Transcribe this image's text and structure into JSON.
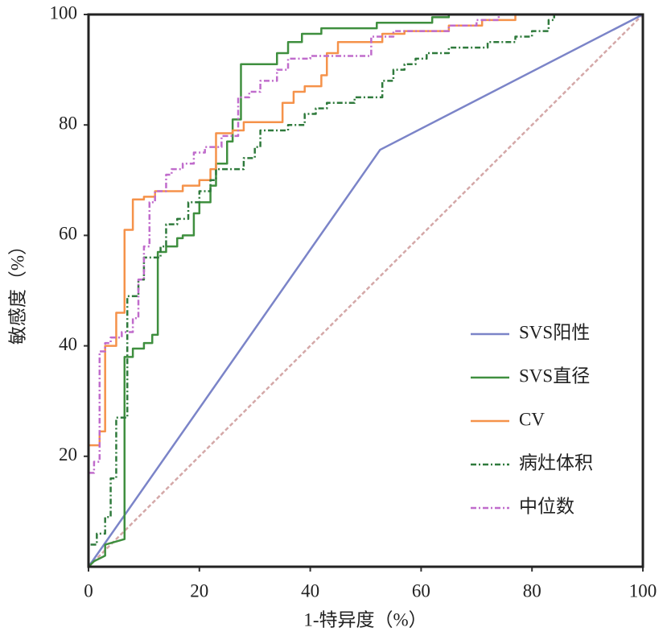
{
  "chart_data": {
    "type": "line",
    "x_label": "1-特异度（%）",
    "y_label": "敏感度（%）",
    "xlim": [
      0,
      100
    ],
    "ylim": [
      0,
      100
    ],
    "xticks": [
      0,
      20,
      40,
      60,
      80,
      100
    ],
    "yticks": [
      20,
      40,
      60,
      80,
      100
    ],
    "legend": "lower right",
    "reference_line": {
      "x": [
        0,
        100
      ],
      "values": [
        0,
        100
      ],
      "color": "#d4a8a8",
      "dash": "dashed"
    },
    "series": [
      {
        "name": "SVS阳性",
        "color": "#7b84c8",
        "dash": "solid",
        "x": [
          0,
          52.6,
          100
        ],
        "values": [
          0,
          75.5,
          100
        ]
      },
      {
        "name": "SVS直径",
        "color": "#3f8f3f",
        "dash": "solid",
        "x": [
          0,
          1,
          3,
          3,
          6.5,
          6.5,
          8,
          8,
          10,
          10,
          11.5,
          11.5,
          12.5,
          12.5,
          14,
          14,
          16,
          16,
          17,
          17,
          19,
          19,
          20,
          20,
          22,
          22,
          23,
          23,
          25,
          25,
          26,
          26,
          27.5,
          27.5,
          34,
          34,
          36,
          36,
          38.5,
          38.5,
          42,
          42,
          52,
          52,
          62,
          62,
          65,
          65,
          100
        ],
        "values": [
          0,
          1,
          2,
          4,
          5,
          38,
          38,
          39.5,
          39.5,
          40.5,
          40.5,
          42,
          42,
          57,
          57,
          58,
          58,
          59.5,
          59.5,
          60,
          60,
          64,
          64,
          66,
          66,
          69,
          69,
          73,
          73,
          77,
          77,
          81,
          81,
          91,
          91,
          93,
          93,
          95,
          95,
          96.5,
          96.5,
          97.5,
          97.5,
          98.5,
          98.5,
          99.5,
          99.5,
          100,
          100
        ]
      },
      {
        "name": "CV",
        "color": "#f5924a",
        "dash": "solid",
        "x": [
          0,
          2,
          2,
          3,
          3,
          5,
          5,
          6.5,
          6.5,
          8,
          8,
          10,
          10,
          12,
          12,
          17,
          17,
          20,
          20,
          22,
          22,
          23,
          23,
          26,
          26,
          28,
          28,
          35,
          35,
          37,
          37,
          39,
          39,
          42,
          42,
          43,
          43,
          45,
          45,
          53,
          53,
          57,
          57,
          65,
          65,
          71,
          71,
          77,
          77,
          100
        ],
        "values": [
          22,
          22,
          24.5,
          24.5,
          40,
          40,
          46,
          46,
          61,
          61,
          66.5,
          66.5,
          67,
          67,
          68,
          68,
          69,
          69,
          70,
          70,
          72,
          72,
          78.5,
          78.5,
          79,
          79,
          80.5,
          80.5,
          84,
          84,
          86,
          86,
          87,
          87,
          89,
          89,
          93,
          93,
          95,
          95,
          96.5,
          96.5,
          97,
          97,
          98,
          98,
          99,
          99,
          100,
          100
        ]
      },
      {
        "name": "病灶体积",
        "color": "#2f7a3c",
        "dash": "dash-dot",
        "x": [
          0,
          0,
          1.5,
          1.5,
          3,
          3,
          4,
          4,
          5,
          5,
          7,
          7,
          9,
          9,
          10,
          10,
          13,
          13,
          14,
          14,
          16,
          16,
          18,
          18,
          20,
          20,
          22,
          22,
          23,
          23,
          28,
          28,
          30,
          30,
          31,
          31,
          36,
          36,
          39,
          39,
          41,
          41,
          43,
          43,
          48,
          48,
          53,
          53,
          55,
          55,
          57,
          57,
          59,
          59,
          61,
          61,
          65,
          65,
          72,
          72,
          77,
          77,
          80,
          80,
          83,
          83,
          84,
          84,
          100
        ],
        "values": [
          0,
          4,
          4,
          6,
          6,
          9,
          9,
          16,
          16,
          27,
          27,
          49,
          49,
          52,
          52,
          56,
          56,
          58,
          58,
          62,
          62,
          63,
          63,
          66,
          66,
          68,
          68,
          70,
          70,
          72,
          72,
          74,
          74,
          76,
          76,
          79,
          79,
          80,
          80,
          82,
          82,
          83,
          83,
          84,
          84,
          85,
          85,
          88,
          88,
          90,
          90,
          91,
          91,
          92,
          92,
          93,
          93,
          94,
          94,
          95,
          95,
          96,
          96,
          97,
          97,
          99,
          99,
          100,
          100
        ]
      },
      {
        "name": "中位数",
        "color": "#c06ccc",
        "dash": "dash-dot",
        "x": [
          0,
          1,
          1,
          2,
          2,
          3,
          3,
          4,
          4,
          6,
          6,
          8,
          8,
          9,
          9,
          10,
          10,
          11,
          11,
          12,
          12,
          14,
          14,
          15,
          15,
          17,
          17,
          19,
          19,
          21,
          21,
          24,
          24,
          27,
          27,
          29,
          29,
          31,
          31,
          34,
          34,
          36,
          36,
          40,
          40,
          51,
          51,
          55,
          55,
          65,
          65,
          70,
          70,
          74,
          74,
          100
        ],
        "values": [
          17,
          17,
          19,
          19,
          39,
          39,
          40.5,
          40.5,
          41.5,
          41.5,
          42.5,
          42.5,
          45,
          45,
          52,
          52,
          58,
          58,
          66,
          66,
          68,
          68,
          71,
          71,
          72,
          72,
          73,
          73,
          75,
          75,
          76,
          76,
          78,
          78,
          85,
          85,
          86,
          86,
          88,
          88,
          90,
          90,
          92,
          92,
          92.5,
          92.5,
          96,
          96,
          97,
          97,
          98,
          98,
          99,
          99,
          100,
          100
        ]
      }
    ]
  }
}
